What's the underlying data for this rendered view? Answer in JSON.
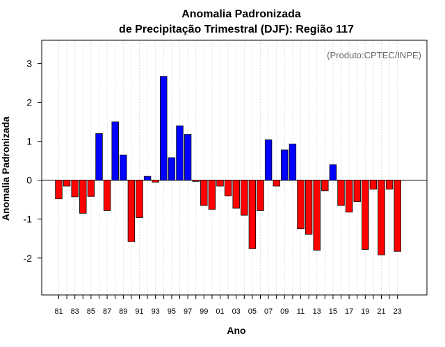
{
  "chart_data": {
    "type": "bar",
    "title": [
      "Anomalia Padronizada",
      "de Precipitação Trimestral (DJF): Região 117"
    ],
    "xlabel": "Ano",
    "ylabel": "Anomalia Padronizada",
    "credit": "(Produto:CPTEC/INPE)",
    "ylim": [
      -2.95,
      3.6
    ],
    "yticks": [
      -2,
      -1,
      0,
      1,
      2,
      3
    ],
    "grid": true,
    "positive_color": "#0000ff",
    "negative_color": "#ff0000",
    "categories": [
      "81",
      "82",
      "83",
      "84",
      "85",
      "86",
      "87",
      "88",
      "89",
      "90",
      "91",
      "92",
      "93",
      "94",
      "95",
      "96",
      "97",
      "98",
      "99",
      "00",
      "01",
      "02",
      "03",
      "04",
      "05",
      "06",
      "07",
      "08",
      "09",
      "10",
      "11",
      "12",
      "13",
      "14",
      "15",
      "16",
      "17",
      "18",
      "19",
      "20",
      "21",
      "22",
      "23"
    ],
    "tick_labels": [
      "81",
      "83",
      "85",
      "87",
      "89",
      "91",
      "93",
      "95",
      "97",
      "99",
      "01",
      "03",
      "05",
      "07",
      "09",
      "11",
      "13",
      "15",
      "17",
      "19",
      "21",
      "23"
    ],
    "values": [
      -0.48,
      -0.15,
      -0.43,
      -0.85,
      -0.42,
      1.2,
      -0.78,
      1.5,
      0.65,
      -1.58,
      -0.96,
      0.1,
      -0.05,
      2.67,
      0.58,
      1.4,
      1.18,
      -0.03,
      -0.65,
      -0.75,
      -0.15,
      -0.4,
      -0.72,
      -0.9,
      -1.76,
      -0.78,
      1.04,
      -0.15,
      0.78,
      0.93,
      -1.25,
      -1.39,
      -1.8,
      -0.27,
      0.4,
      -0.65,
      -0.82,
      -0.55,
      -1.78,
      -0.23,
      -1.92,
      -0.23,
      -1.83
    ]
  }
}
